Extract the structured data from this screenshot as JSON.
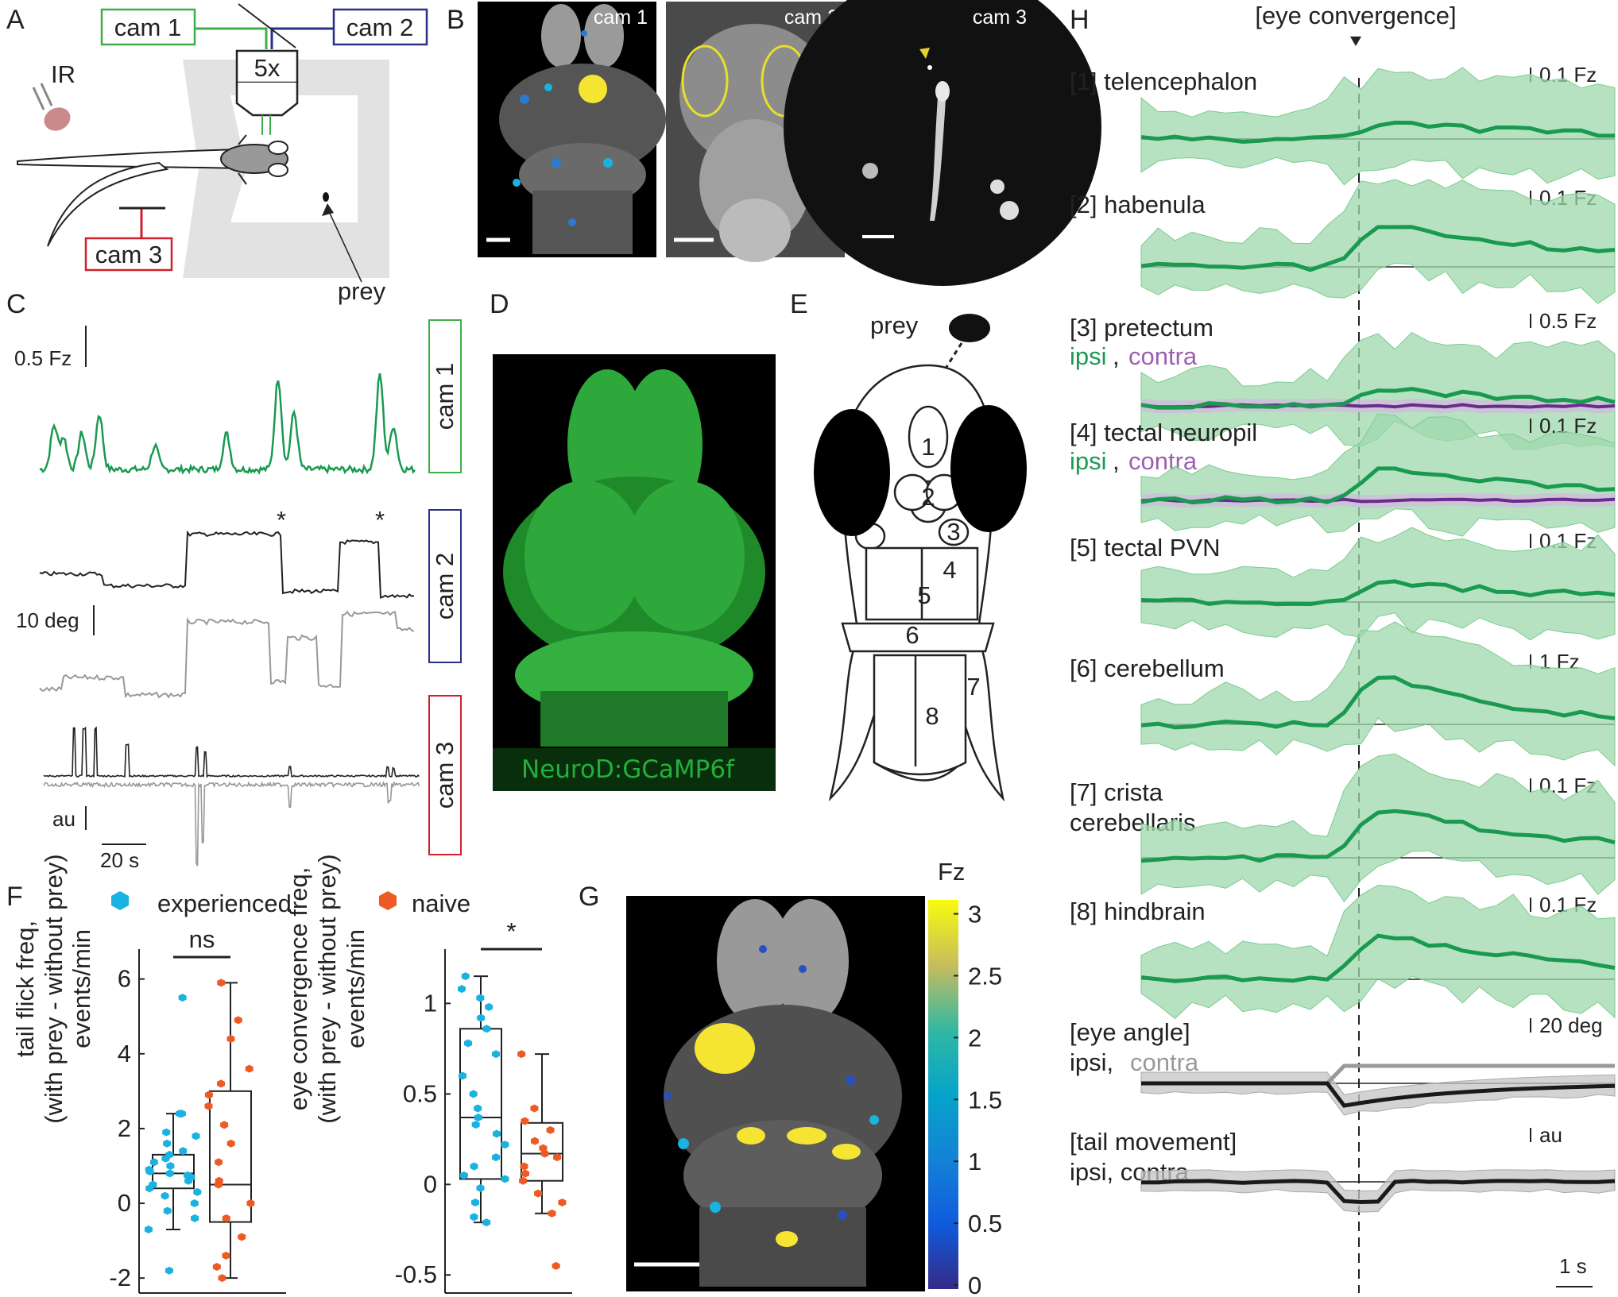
{
  "panels": {
    "a": "A",
    "b": "B",
    "c": "C",
    "d": "D",
    "e": "E",
    "f": "F",
    "g": "G",
    "h": "H"
  },
  "colors": {
    "green": "#1a9a50",
    "green_fill": "#9fd8ae",
    "purple": "#6a2a8e",
    "purple_fill": "#d3b6de",
    "cam1": "#3fae49",
    "cam2": "#2b2f86",
    "cam3": "#d0202d",
    "experienced": "#1ab2e0",
    "naive": "#ee5a24"
  },
  "setup": {
    "cam1": "cam 1",
    "cam2": "cam 2",
    "cam3": "cam 3",
    "objective": "5x",
    "ir": "IR",
    "prey": "prey"
  },
  "images_b": {
    "cam1": "cam 1",
    "cam2": "cam 2",
    "cam3": "cam 3"
  },
  "traces_c": {
    "fz_scale": "0.5 Fz",
    "deg_scale": "10 deg",
    "au_scale": "au",
    "time_scale": "20 s",
    "asterisk": "*",
    "cam1": "cam 1",
    "cam2": "cam 2",
    "cam3": "cam 3"
  },
  "panel_d": {
    "label": "NeuroD:GCaMP6f"
  },
  "panel_e": {
    "prey": "prey",
    "regions": [
      "1",
      "2",
      "3",
      "4",
      "5",
      "6",
      "7",
      "8"
    ]
  },
  "legend_f": {
    "experienced": "experienced",
    "naive": "naive"
  },
  "chart_data": [
    {
      "type": "box",
      "ylabel": "tail flick freq, (with prey - without prey) events/min",
      "ylim": [
        -2.4,
        6.8
      ],
      "yticks": [
        "-2",
        "0",
        "2",
        "4",
        "6"
      ],
      "significance": "ns",
      "series": [
        {
          "name": "experienced",
          "box": {
            "whisker_low": -0.7,
            "q1": 0.4,
            "median": 0.8,
            "q3": 1.3,
            "whisker_high": 2.4
          },
          "points": [
            5.5,
            2.4,
            2.4,
            1.9,
            1.8,
            1.6,
            1.4,
            1.3,
            1.2,
            1.1,
            1.0,
            0.9,
            0.85,
            0.8,
            0.75,
            0.7,
            0.6,
            0.5,
            0.4,
            0.3,
            0.2,
            0.0,
            -0.2,
            -0.4,
            -0.7,
            -1.8
          ]
        },
        {
          "name": "naive",
          "box": {
            "whisker_low": -2.0,
            "q1": -0.5,
            "median": 0.5,
            "q3": 3.0,
            "whisker_high": 5.9
          },
          "points": [
            5.9,
            4.9,
            4.4,
            3.6,
            3.2,
            2.9,
            2.6,
            2.1,
            1.6,
            1.1,
            0.6,
            0.5,
            0.0,
            -0.4,
            -0.9,
            -1.4,
            -1.7,
            -2.0
          ]
        }
      ]
    },
    {
      "type": "box",
      "ylabel": "eye convergence freq, (with prey - without prey) events/min",
      "ylim": [
        -0.6,
        1.3
      ],
      "yticks": [
        "-0.5",
        "0",
        "0.5",
        "1"
      ],
      "significance": "*",
      "series": [
        {
          "name": "experienced",
          "box": {
            "whisker_low": -0.21,
            "q1": 0.03,
            "median": 0.37,
            "q3": 0.86,
            "whisker_high": 1.15
          },
          "points": [
            1.15,
            1.08,
            1.03,
            0.98,
            0.92,
            0.86,
            0.78,
            0.72,
            0.6,
            0.5,
            0.42,
            0.37,
            0.33,
            0.28,
            0.22,
            0.15,
            0.1,
            0.05,
            0.03,
            -0.02,
            -0.1,
            -0.18,
            -0.21
          ]
        },
        {
          "name": "naive",
          "box": {
            "whisker_low": -0.16,
            "q1": 0.02,
            "median": 0.17,
            "q3": 0.34,
            "whisker_high": 0.72
          },
          "points": [
            0.72,
            0.42,
            0.35,
            0.3,
            0.24,
            0.2,
            0.17,
            0.15,
            0.1,
            0.06,
            0.02,
            -0.05,
            -0.1,
            -0.16,
            -0.45
          ]
        }
      ]
    }
  ],
  "colorbar_g": {
    "title": "Fz",
    "ticks": [
      "3",
      "2.5",
      "2",
      "1.5",
      "1",
      "0.5",
      "0"
    ]
  },
  "panel_h": {
    "header": "[eye convergence]",
    "ipsi": "ipsi",
    "contra": "contra",
    "ipsi_contra": "ipsi, contra",
    "time_scale": "1 s",
    "rows": [
      {
        "title": "[1] telencephalon",
        "scale": "0.1 Fz"
      },
      {
        "title": "[2] habenula",
        "scale": "0.1 Fz"
      },
      {
        "title": "[3] pretectum",
        "scale": "0.5 Fz"
      },
      {
        "title": "[4] tectal neuropil",
        "scale": "0.1 Fz"
      },
      {
        "title": "[5] tectal PVN",
        "scale": "0.1 Fz"
      },
      {
        "title": "[6] cerebellum",
        "scale": "1 Fz"
      },
      {
        "title": "[7] crista",
        "title2": "cerebellaris",
        "scale": "0.1 Fz"
      },
      {
        "title": "[8] hindbrain",
        "scale": "0.1 Fz"
      },
      {
        "title": "[eye angle]",
        "scale": "20 deg"
      },
      {
        "title": "[tail movement]",
        "scale": "au"
      }
    ]
  }
}
